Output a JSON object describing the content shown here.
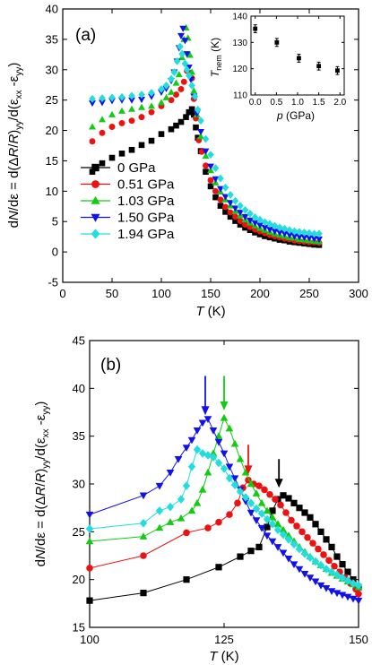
{
  "colors": {
    "0 GPa": "#000000",
    "0.51 GPa": "#ee1111",
    "1.03 GPa": "#11cc11",
    "1.50 GPa": "#1111ee",
    "1.94 GPa": "#22dddd"
  },
  "chart_data": [
    {
      "id": "a",
      "type": "scatter",
      "panel_label": "(a)",
      "xlabel": "T (K)",
      "ylabel": "dN/dε = d(ΔR/R)yy/d(εxx -εyy)",
      "xlim": [
        0,
        300
      ],
      "ylim": [
        -5,
        40
      ],
      "xticks": [
        0,
        50,
        100,
        150,
        200,
        250,
        300
      ],
      "yticks": [
        -5,
        0,
        5,
        10,
        15,
        20,
        25,
        30,
        35,
        40
      ],
      "legend_position": "bottom-left",
      "series": [
        {
          "name": "0 GPa",
          "marker": "square",
          "x": [
            30,
            40,
            50,
            60,
            70,
            80,
            90,
            100,
            110,
            115,
            120,
            125,
            128,
            131,
            133,
            135,
            137,
            140,
            145,
            150,
            155,
            160,
            165,
            170,
            175,
            180,
            185,
            190,
            195,
            200,
            205,
            210,
            215,
            220,
            225,
            230,
            235,
            240,
            245,
            250,
            255,
            260
          ],
          "y": [
            13.2,
            14.6,
            15.5,
            16.2,
            16.8,
            17.6,
            18.3,
            19.4,
            20.2,
            20.8,
            21.4,
            22.2,
            23.0,
            23.5,
            22.6,
            20.5,
            18.8,
            16.6,
            13.2,
            10.8,
            9.0,
            7.6,
            6.6,
            5.8,
            5.1,
            4.5,
            4.0,
            3.6,
            3.2,
            2.9,
            2.6,
            2.4,
            2.2,
            2.0,
            1.9,
            1.7,
            1.6,
            1.5,
            1.4,
            1.3,
            1.2,
            1.15
          ]
        },
        {
          "name": "0.51 GPa",
          "marker": "circle",
          "x": [
            30,
            40,
            50,
            60,
            70,
            80,
            90,
            100,
            110,
            115,
            120,
            123,
            126,
            129,
            131,
            133,
            135,
            138,
            141,
            145,
            150,
            155,
            160,
            165,
            170,
            175,
            180,
            185,
            190,
            195,
            200,
            205,
            210,
            215,
            220,
            225,
            230,
            235,
            240,
            245,
            250,
            255,
            260
          ],
          "y": [
            18.2,
            19.6,
            20.6,
            21.2,
            21.6,
            22.2,
            23.0,
            24.0,
            25.0,
            25.9,
            26.8,
            28.0,
            29.8,
            29.5,
            28.6,
            25.2,
            22.0,
            18.4,
            16.5,
            14.2,
            11.8,
            10.0,
            8.6,
            7.4,
            6.5,
            5.8,
            5.1,
            4.5,
            4.1,
            3.7,
            3.4,
            3.1,
            2.8,
            2.6,
            2.4,
            2.2,
            2.1,
            1.9,
            1.8,
            1.7,
            1.6,
            1.6,
            1.5
          ]
        },
        {
          "name": "1.03 GPa",
          "marker": "triangle-up",
          "x": [
            30,
            40,
            50,
            60,
            70,
            80,
            90,
            100,
            105,
            110,
            115,
            118,
            121,
            123,
            125,
            127,
            129,
            131,
            133,
            136,
            140,
            145,
            150,
            155,
            160,
            165,
            170,
            175,
            180,
            185,
            190,
            195,
            200,
            205,
            210,
            215,
            220,
            225,
            230,
            235,
            240,
            245,
            250,
            255,
            260
          ],
          "y": [
            20.6,
            21.8,
            22.6,
            23.2,
            23.5,
            23.8,
            24.0,
            24.6,
            25.4,
            26.3,
            27.8,
            29.2,
            32.0,
            35.0,
            36.9,
            35.2,
            32.4,
            29.6,
            26.5,
            22.6,
            19.0,
            15.8,
            13.4,
            11.4,
            9.9,
            8.6,
            7.6,
            6.7,
            6.0,
            5.3,
            4.8,
            4.3,
            3.9,
            3.6,
            3.3,
            3.0,
            2.8,
            2.6,
            2.4,
            2.3,
            2.1,
            2.0,
            1.9,
            1.8,
            1.7
          ]
        },
        {
          "name": "1.50 GPa",
          "marker": "triangle-down",
          "x": [
            30,
            40,
            50,
            60,
            70,
            80,
            90,
            100,
            105,
            110,
            113,
            116,
            118,
            120,
            122,
            124,
            126,
            128,
            130,
            133,
            136,
            140,
            145,
            150,
            155,
            160,
            165,
            170,
            175,
            180,
            185,
            190,
            195,
            200,
            205,
            210,
            215,
            220,
            225,
            230,
            235,
            240,
            245,
            250,
            255,
            260
          ],
          "y": [
            24.5,
            24.6,
            24.9,
            25.0,
            25.0,
            25.1,
            25.6,
            26.3,
            26.9,
            28.2,
            29.6,
            31.4,
            33.6,
            35.6,
            36.8,
            34.8,
            32.6,
            30.4,
            28.4,
            25.6,
            22.8,
            19.8,
            16.6,
            14.1,
            12.0,
            10.4,
            9.1,
            8.1,
            7.2,
            6.5,
            5.8,
            5.2,
            4.8,
            4.4,
            4.0,
            3.7,
            3.4,
            3.2,
            3.0,
            2.8,
            2.6,
            2.5,
            2.4,
            2.3,
            2.2,
            2.1
          ]
        },
        {
          "name": "1.94 GPa",
          "marker": "diamond",
          "x": [
            30,
            40,
            50,
            60,
            70,
            80,
            90,
            100,
            105,
            110,
            113,
            116,
            119,
            121,
            124,
            126,
            128,
            131,
            134,
            137,
            140,
            145,
            150,
            155,
            160,
            165,
            170,
            175,
            180,
            185,
            190,
            195,
            200,
            205,
            210,
            215,
            220,
            225,
            230,
            235,
            240,
            245,
            250,
            255,
            260
          ],
          "y": [
            25.2,
            25.3,
            25.4,
            25.5,
            25.7,
            25.9,
            26.2,
            26.8,
            27.4,
            28.5,
            29.6,
            31.4,
            33.8,
            32.6,
            31.0,
            30.0,
            29.0,
            27.4,
            25.6,
            23.4,
            21.6,
            18.6,
            16.0,
            13.8,
            12.1,
            10.6,
            9.4,
            8.4,
            7.6,
            6.9,
            6.3,
            5.7,
            5.3,
            4.9,
            4.6,
            4.3,
            4.0,
            3.8,
            3.6,
            3.4,
            3.3,
            3.2,
            3.1,
            3.0,
            3.0
          ]
        }
      ]
    },
    {
      "id": "a-inset",
      "type": "scatter",
      "xlabel": "p (GPa)",
      "ylabel": "Tnem (K)",
      "xlim": [
        -0.1,
        2.1
      ],
      "ylim": [
        110,
        140
      ],
      "xticks": [
        0.0,
        0.5,
        1.0,
        1.5,
        2.0
      ],
      "yticks": [
        110,
        120,
        130,
        140
      ],
      "xtick_labels": [
        "0.0",
        "0.5",
        "1.0",
        "1.5",
        "2.0"
      ],
      "series": [
        {
          "x": [
            0,
            0.51,
            1.03,
            1.5,
            1.94
          ],
          "y": [
            135.2,
            130.0,
            124.0,
            121.0,
            119.3
          ],
          "yerr": [
            1.5,
            1.5,
            1.5,
            1.5,
            1.5
          ]
        }
      ]
    },
    {
      "id": "b",
      "type": "line",
      "panel_label": "(b)",
      "xlabel": "T (K)",
      "ylabel": "dN/dε = d(ΔR/R)yy/d(εxx -εyy)",
      "xlim": [
        100,
        150
      ],
      "ylim": [
        15,
        45
      ],
      "xticks": [
        100,
        125,
        150
      ],
      "yticks": [
        15,
        20,
        25,
        30,
        35,
        40,
        45
      ],
      "annotations": [
        {
          "type": "arrow",
          "x": 121.5,
          "y_tip": 37.2,
          "y_tail": 41.3,
          "series": "1.50 GPa"
        },
        {
          "type": "arrow",
          "x": 125,
          "y_tip": 37.7,
          "y_tail": 41.3,
          "series": "1.03 GPa"
        },
        {
          "type": "arrow",
          "x": 129.5,
          "y_tip": 31.0,
          "y_tail": 34.1,
          "series": "0.51 GPa"
        },
        {
          "type": "arrow",
          "x": 135.2,
          "y_tip": 29.6,
          "y_tail": 32.6,
          "series": "0 GPa"
        }
      ],
      "series": [
        {
          "name": "0 GPa",
          "marker": "square",
          "x": [
            100,
            110,
            118,
            124,
            128,
            130,
            131.5,
            133,
            134,
            135,
            136,
            137,
            138,
            139,
            140,
            141,
            142,
            143,
            144,
            145,
            146,
            147,
            148,
            149,
            150
          ],
          "y": [
            17.8,
            18.6,
            20.0,
            21.3,
            22.4,
            23.0,
            23.4,
            25.5,
            27.2,
            28.4,
            28.8,
            28.5,
            28.0,
            27.5,
            27.0,
            26.5,
            25.8,
            25.0,
            24.2,
            23.4,
            22.4,
            21.6,
            20.8,
            20.0,
            19.2
          ]
        },
        {
          "name": "0.51 GPa",
          "marker": "circle",
          "x": [
            100,
            110,
            118,
            122,
            124,
            126,
            127.5,
            128.5,
            129.5,
            130.5,
            131.5,
            132.5,
            133.5,
            134.5,
            135.5,
            136.5,
            137.5,
            138.5,
            139.5,
            140.5,
            141.5,
            142.5,
            143.5,
            144.5,
            145.5,
            146.5,
            147.5,
            148.5,
            149.5,
            150
          ],
          "y": [
            21.2,
            22.5,
            24.9,
            25.4,
            26.0,
            26.8,
            28.0,
            29.6,
            30.4,
            30.0,
            29.8,
            29.4,
            28.9,
            28.4,
            27.8,
            27.0,
            26.2,
            25.6,
            25.0,
            24.4,
            23.8,
            23.2,
            22.6,
            22.0,
            21.4,
            20.8,
            20.2,
            19.6,
            19.0,
            18.5
          ]
        },
        {
          "name": "1.03 GPa",
          "marker": "triangle-up",
          "x": [
            100,
            110,
            113,
            115,
            117,
            119,
            120,
            121,
            122,
            123,
            124,
            125,
            126,
            127,
            128,
            129,
            130,
            131,
            132,
            133,
            134,
            135,
            136,
            137,
            138,
            139,
            140,
            141,
            142,
            143,
            144,
            145,
            146,
            147,
            148,
            149,
            150
          ],
          "y": [
            24.0,
            24.5,
            25.4,
            26.0,
            26.4,
            27.2,
            28.0,
            29.4,
            31.2,
            33.2,
            35.0,
            36.9,
            35.8,
            34.2,
            32.6,
            31.2,
            30.0,
            29.0,
            28.0,
            27.2,
            26.5,
            25.8,
            25.2,
            24.6,
            24.0,
            23.4,
            22.9,
            22.4,
            21.9,
            21.5,
            21.1,
            20.7,
            20.4,
            20.1,
            19.8,
            19.5,
            19.2
          ]
        },
        {
          "name": "1.50 GPa",
          "marker": "triangle-down",
          "x": [
            100,
            110,
            113,
            115,
            116.5,
            118,
            119,
            120,
            121,
            122,
            123,
            124,
            125,
            126,
            127,
            128,
            129,
            130,
            131,
            132,
            133,
            134,
            135,
            136,
            137,
            138,
            139,
            140,
            141,
            142,
            143,
            144,
            145,
            146,
            147,
            148,
            149,
            150
          ],
          "y": [
            26.8,
            28.8,
            29.8,
            31.2,
            32.6,
            33.8,
            34.6,
            35.6,
            36.4,
            36.8,
            35.6,
            34.4,
            33.2,
            31.8,
            30.6,
            29.4,
            28.2,
            27.0,
            26.2,
            25.4,
            24.6,
            24.0,
            23.4,
            22.8,
            22.2,
            21.6,
            21.1,
            20.6,
            20.2,
            19.8,
            19.4,
            19.1,
            18.8,
            18.6,
            18.4,
            18.2,
            18.0,
            17.8
          ]
        },
        {
          "name": "1.94 GPa",
          "marker": "diamond",
          "x": [
            100,
            110,
            113,
            115,
            117,
            118,
            119,
            120,
            121,
            122,
            123,
            124,
            125,
            126,
            127,
            128,
            129,
            130,
            131,
            132,
            133,
            134,
            135,
            136,
            137,
            138,
            139,
            140,
            141,
            142,
            143,
            144,
            145,
            146,
            147,
            148,
            149,
            150
          ],
          "y": [
            25.3,
            25.9,
            27.2,
            27.6,
            28.4,
            29.8,
            31.8,
            33.6,
            33.2,
            33.0,
            32.8,
            32.2,
            31.6,
            30.6,
            29.9,
            29.2,
            28.6,
            28.0,
            27.4,
            26.9,
            26.3,
            25.8,
            25.2,
            24.7,
            24.2,
            23.7,
            23.2,
            22.7,
            22.3,
            21.9,
            21.5,
            21.1,
            20.8,
            20.5,
            20.2,
            19.9,
            19.6,
            19.4
          ]
        }
      ]
    }
  ]
}
